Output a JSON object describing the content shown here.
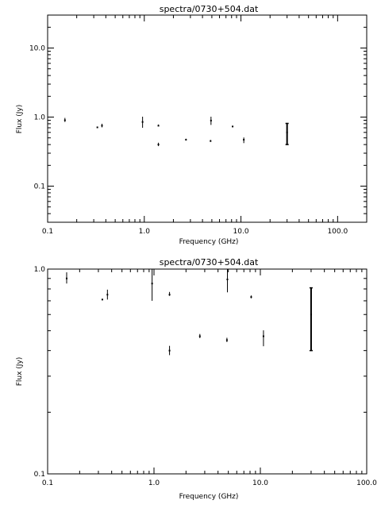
{
  "chart_data": [
    {
      "type": "scatter",
      "title": "spectra/0730+504.dat",
      "xlabel": "Frequency (GHz)",
      "ylabel": "Flux (Jy)",
      "xscale": "log",
      "yscale": "log",
      "xlim": [
        0.1,
        200
      ],
      "ylim": [
        0.03,
        30
      ],
      "xticks": [
        "0.1",
        "1.0",
        "10.0",
        "100.0"
      ],
      "yticks": [
        "0.1",
        "1.0",
        "10.0"
      ],
      "grid": false,
      "points": [
        {
          "x": 0.151,
          "y": 0.9,
          "ylo": 0.85,
          "yhi": 0.96
        },
        {
          "x": 0.327,
          "y": 0.71,
          "ylo": 0.71,
          "yhi": 0.71
        },
        {
          "x": 0.365,
          "y": 0.75,
          "ylo": 0.71,
          "yhi": 0.79
        },
        {
          "x": 0.96,
          "y": 0.85,
          "ylo": 0.7,
          "yhi": 1.0
        },
        {
          "x": 1.4,
          "y": 0.75,
          "ylo": 0.74,
          "yhi": 0.77
        },
        {
          "x": 1.4,
          "y": 0.4,
          "ylo": 0.38,
          "yhi": 0.42
        },
        {
          "x": 2.7,
          "y": 0.47,
          "ylo": 0.46,
          "yhi": 0.48
        },
        {
          "x": 4.85,
          "y": 0.45,
          "ylo": 0.44,
          "yhi": 0.46
        },
        {
          "x": 4.9,
          "y": 0.89,
          "ylo": 0.77,
          "yhi": 1.0
        },
        {
          "x": 8.2,
          "y": 0.73,
          "ylo": 0.72,
          "yhi": 0.74
        },
        {
          "x": 10.7,
          "y": 0.47,
          "ylo": 0.42,
          "yhi": 0.5
        },
        {
          "x": 30.0,
          "y": 0.6,
          "ylo": 0.4,
          "yhi": 0.81
        }
      ]
    },
    {
      "type": "scatter",
      "title": "spectra/0730+504.dat",
      "xlabel": "Frequency (GHz)",
      "ylabel": "Flux (Jy)",
      "xscale": "log",
      "yscale": "log",
      "xlim": [
        0.1,
        100
      ],
      "ylim": [
        0.1,
        1.0
      ],
      "xticks": [
        "0.1",
        "1.0",
        "10.0",
        "100.0"
      ],
      "yticks": [
        "0.1",
        "1.0"
      ],
      "grid": false,
      "points": [
        {
          "x": 0.151,
          "y": 0.9,
          "ylo": 0.85,
          "yhi": 0.96
        },
        {
          "x": 0.327,
          "y": 0.71,
          "ylo": 0.71,
          "yhi": 0.71
        },
        {
          "x": 0.365,
          "y": 0.75,
          "ylo": 0.71,
          "yhi": 0.79
        },
        {
          "x": 0.96,
          "y": 0.85,
          "ylo": 0.7,
          "yhi": 1.0
        },
        {
          "x": 1.4,
          "y": 0.75,
          "ylo": 0.74,
          "yhi": 0.77
        },
        {
          "x": 1.4,
          "y": 0.4,
          "ylo": 0.38,
          "yhi": 0.42
        },
        {
          "x": 2.7,
          "y": 0.47,
          "ylo": 0.46,
          "yhi": 0.48
        },
        {
          "x": 4.85,
          "y": 0.45,
          "ylo": 0.44,
          "yhi": 0.46
        },
        {
          "x": 4.9,
          "y": 0.89,
          "ylo": 0.77,
          "yhi": 1.0
        },
        {
          "x": 8.2,
          "y": 0.73,
          "ylo": 0.72,
          "yhi": 0.74
        },
        {
          "x": 10.7,
          "y": 0.47,
          "ylo": 0.42,
          "yhi": 0.5
        },
        {
          "x": 30.0,
          "y": 0.6,
          "ylo": 0.4,
          "yhi": 0.81
        }
      ]
    }
  ]
}
